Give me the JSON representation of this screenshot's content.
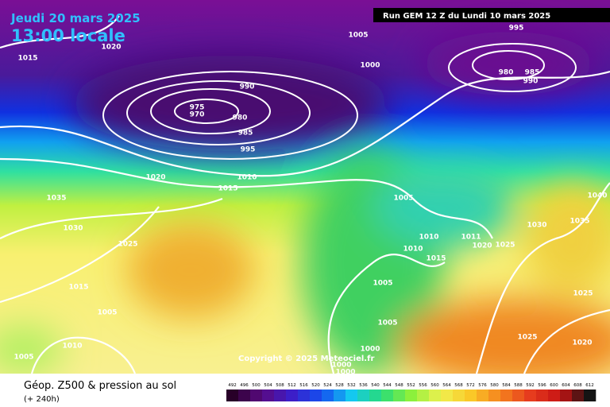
{
  "header": {
    "date": "Jeudi 20 mars 2025",
    "time": "13:00 locale",
    "run": "Run GEM 12 Z du Lundi 10 mars 2025"
  },
  "isobar_labels": [
    1020,
    1015,
    1005,
    995,
    1000,
    980,
    985,
    990,
    990,
    975,
    970,
    980,
    985,
    995,
    1020,
    1010,
    1015,
    1035,
    1005,
    1040,
    1030,
    1035,
    1030,
    1025,
    1010,
    1011,
    1020,
    1025,
    1010,
    1015,
    1015,
    1005,
    1025,
    1005,
    1005,
    1025,
    1020,
    1010,
    1000,
    1005,
    1000,
    1000
  ],
  "copyright": "Copyright © 2025 Meteociel.fr",
  "legend": {
    "title": "Géop. Z500 & pression au sol",
    "subtitle": "(+ 240h)",
    "scale": [
      492,
      496,
      500,
      504,
      508,
      512,
      516,
      520,
      524,
      528,
      532,
      536,
      540,
      544,
      548,
      552,
      556,
      560,
      564,
      568,
      572,
      576,
      580,
      584,
      588,
      592,
      596,
      600,
      604,
      608,
      612
    ]
  }
}
